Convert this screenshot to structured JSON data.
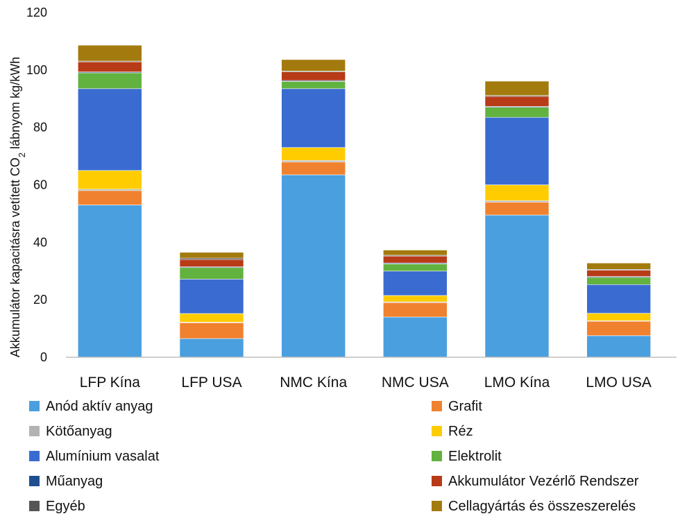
{
  "chart_data": {
    "type": "bar",
    "stacked": true,
    "title": "",
    "xlabel": "",
    "ylabel": {
      "before_sub": "Akkumulátor kapacitásra vetített CO",
      "sub": "2",
      "after_sub": " lábnyom kg/kWh"
    },
    "ylim": [
      0,
      120
    ],
    "yticks": [
      "0",
      "20",
      "40",
      "60",
      "80",
      "100",
      "120"
    ],
    "grid": false,
    "legend_position": "bottom",
    "categories": [
      "LFP Kína",
      "LFP USA",
      "NMC Kína",
      "NMC USA",
      "LMO Kína",
      "LMO USA"
    ],
    "series": [
      {
        "name": "Anód aktív anyag",
        "color": "#4a9fdf",
        "values": [
          53,
          6.5,
          63.5,
          14,
          49.5,
          7.5
        ]
      },
      {
        "name": "Grafit",
        "color": "#f0812e",
        "values": [
          5,
          5.5,
          4.5,
          5,
          4.5,
          5
        ]
      },
      {
        "name": "Kötőanyag",
        "color": "#b3b3b3",
        "values": [
          0.5,
          0.2,
          0.5,
          0.3,
          0.5,
          0.2
        ]
      },
      {
        "name": "Réz",
        "color": "#ffcc00",
        "values": [
          6.5,
          3,
          4.5,
          2.2,
          5.5,
          2.6
        ]
      },
      {
        "name": "Alumínium vasalat",
        "color": "#3a6bd0",
        "values": [
          28.5,
          12,
          20.5,
          8.5,
          23.5,
          10
        ]
      },
      {
        "name": "Elektrolit",
        "color": "#62b23f",
        "values": [
          5.5,
          4,
          2.5,
          2.5,
          3.5,
          2.5
        ]
      },
      {
        "name": "Műanyag",
        "color": "#1f4f8f",
        "values": [
          0.3,
          0.3,
          0.3,
          0.3,
          0.3,
          0.3
        ]
      },
      {
        "name": "Akkumulátor Vezérlő Rendszer",
        "color": "#b83b18",
        "values": [
          3.5,
          2.5,
          3,
          2.4,
          3.5,
          2.2
        ]
      },
      {
        "name": "Egyéb",
        "color": "#555555",
        "values": [
          0.3,
          0.5,
          0.3,
          0.3,
          0.3,
          0.3
        ]
      },
      {
        "name": "Cellagyártás és összeszerelés",
        "color": "#a37a0e",
        "values": [
          5.5,
          2,
          4,
          1.8,
          5,
          2.2
        ]
      }
    ],
    "legend_layout": [
      [
        0,
        1
      ],
      [
        2,
        3
      ],
      [
        4,
        5
      ],
      [
        6,
        7
      ],
      [
        8,
        9
      ]
    ],
    "bar_separator_color": "#ffffff",
    "axis_color": "#bfbfbf"
  }
}
